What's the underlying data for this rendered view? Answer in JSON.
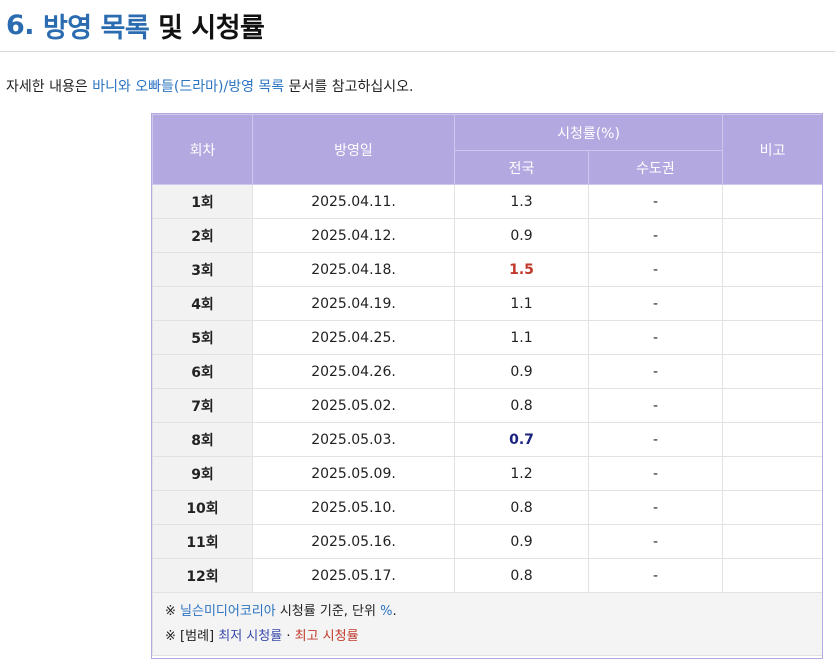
{
  "heading": {
    "number": "6.",
    "link": "방영 목록",
    "rest": "및 시청률"
  },
  "intro": {
    "prefix": "자세한 내용은 ",
    "link1": "바니와 오빠들(드라마)/방영 목록",
    "suffix": " 문서를 참고하십시오."
  },
  "table": {
    "headers": {
      "episode": "회차",
      "date": "방영일",
      "rating": "시청률(%)",
      "national": "전국",
      "capital": "수도권",
      "note": "비고"
    },
    "rows": [
      {
        "ep": "1회",
        "date": "2025.04.11.",
        "national": "1.3",
        "capital": "-",
        "note": ""
      },
      {
        "ep": "2회",
        "date": "2025.04.12.",
        "national": "0.9",
        "capital": "-",
        "note": ""
      },
      {
        "ep": "3회",
        "date": "2025.04.18.",
        "national": "1.5",
        "capital": "-",
        "note": ""
      },
      {
        "ep": "4회",
        "date": "2025.04.19.",
        "national": "1.1",
        "capital": "-",
        "note": ""
      },
      {
        "ep": "5회",
        "date": "2025.04.25.",
        "national": "1.1",
        "capital": "-",
        "note": ""
      },
      {
        "ep": "6회",
        "date": "2025.04.26.",
        "national": "0.9",
        "capital": "-",
        "note": ""
      },
      {
        "ep": "7회",
        "date": "2025.05.02.",
        "national": "0.8",
        "capital": "-",
        "note": ""
      },
      {
        "ep": "8회",
        "date": "2025.05.03.",
        "national": "0.7",
        "capital": "-",
        "note": ""
      },
      {
        "ep": "9회",
        "date": "2025.05.09.",
        "national": "1.2",
        "capital": "-",
        "note": ""
      },
      {
        "ep": "10회",
        "date": "2025.05.10.",
        "national": "0.8",
        "capital": "-",
        "note": ""
      },
      {
        "ep": "11회",
        "date": "2025.05.16.",
        "national": "0.9",
        "capital": "-",
        "note": ""
      },
      {
        "ep": "12회",
        "date": "2025.05.17.",
        "national": "0.8",
        "capital": "-",
        "note": ""
      }
    ],
    "footnote1": {
      "mark": "※ ",
      "source": "닐슨미디어코리아",
      "text": " 시청률 기준, 단위 ",
      "unit": "%",
      "end": "."
    },
    "footnote2": {
      "mark": "※ ",
      "legend": "[범례]",
      "low": "최저 시청률",
      "sep": " · ",
      "high": "최고 시청률"
    },
    "colors": {
      "header_bg": "#b3a8e0",
      "highest": "#c0392b",
      "lowest": "#1a237e"
    }
  }
}
